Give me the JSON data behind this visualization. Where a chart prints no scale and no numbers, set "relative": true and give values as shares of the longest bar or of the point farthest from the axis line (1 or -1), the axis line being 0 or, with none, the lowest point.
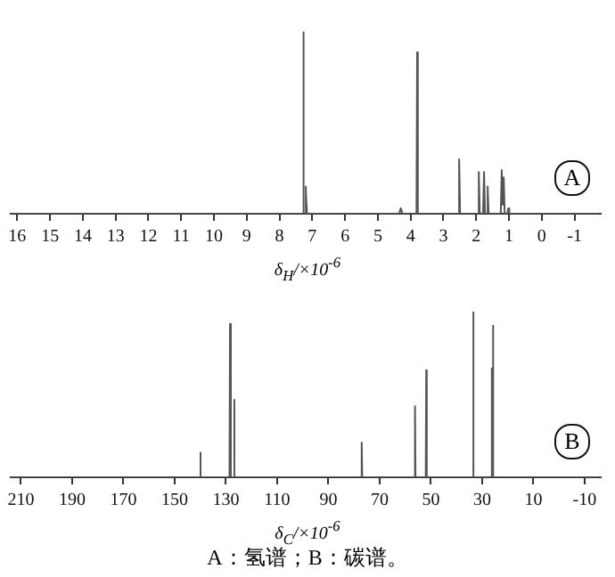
{
  "chart_data": [
    {
      "type": "line",
      "relative": true,
      "xlabel": "δ$_{H}$/×10$^{-6}$",
      "xlim": [
        16.2,
        -1.8
      ],
      "xticks": [
        16,
        15,
        14,
        13,
        12,
        11,
        10,
        9,
        8,
        7,
        6,
        5,
        4,
        3,
        2,
        1,
        0,
        -1
      ],
      "grid": false,
      "annotations": [
        "A"
      ],
      "series": [
        {
          "color": "#555555",
          "x": [
            16.2,
            7.32,
            7.28,
            7.27,
            7.26,
            7.22,
            7.21,
            7.2,
            7.18,
            7.16,
            4.35,
            4.3,
            4.25,
            3.82,
            3.8,
            3.78,
            2.55,
            2.52,
            2.49,
            1.95,
            1.92,
            1.89,
            1.79,
            1.76,
            1.73,
            1.68,
            1.65,
            1.62,
            1.25,
            1.22,
            1.19,
            1.16,
            1.13,
            1.05,
            1.02,
            0.99,
            -1.8
          ],
          "values": [
            0,
            0,
            0,
            1,
            0,
            0,
            0.15,
            0,
            0.12,
            0,
            0,
            0.03,
            0,
            0,
            0.89,
            0,
            0,
            0.3,
            0,
            0,
            0.23,
            0,
            0,
            0.23,
            0,
            0,
            0.15,
            0,
            0,
            0.24,
            0.05,
            0.2,
            0,
            0,
            0.03,
            0,
            0
          ]
        }
      ]
    },
    {
      "type": "line",
      "relative": true,
      "xlabel": "δ$_{C}$/×10$^{-6}$",
      "xlim": [
        214,
        -16.3
      ],
      "xticks": [
        210,
        190,
        170,
        150,
        130,
        110,
        90,
        70,
        50,
        30,
        10,
        -10
      ],
      "grid": false,
      "annotations": [
        "B",
        "A：氢谱；B：碳谱。"
      ],
      "series": [
        {
          "color": "#555555",
          "x": [
            214,
            140.2,
            140,
            139.8,
            128.6,
            128.4,
            128.25,
            128.1,
            127.9,
            127,
            126.8,
            126.6,
            77.2,
            77,
            76.8,
            56.4,
            56.2,
            56,
            52,
            51.8,
            51.6,
            33.7,
            33.5,
            33.3,
            26.4,
            26.2,
            26,
            25.8,
            25.6,
            -16.3
          ],
          "values": [
            0,
            0,
            0.15,
            0,
            0,
            0.93,
            0,
            0.92,
            0,
            0,
            0.47,
            0,
            0,
            0.21,
            0,
            0,
            0.43,
            0,
            0,
            0.65,
            0,
            0,
            1,
            0,
            0,
            0.66,
            0,
            0.92,
            0,
            0
          ]
        }
      ]
    }
  ]
}
